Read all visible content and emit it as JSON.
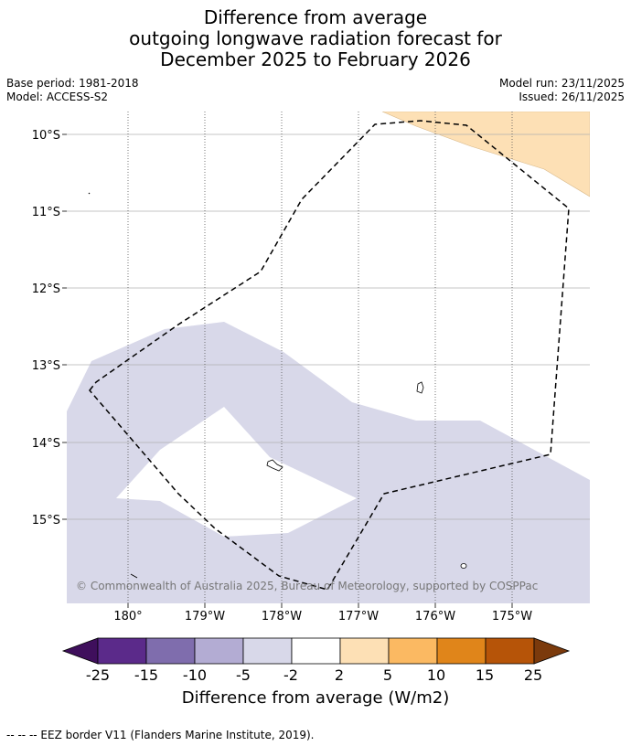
{
  "title": {
    "line1": "Difference from average",
    "line2": "outgoing longwave radiation forecast for",
    "line3": "December 2025 to February 2026"
  },
  "meta": {
    "base_period": "Base period: 1981-2018",
    "model": "Model: ACCESS-S2",
    "model_run": "Model run: 23/11/2025",
    "issued": "Issued: 26/11/2025"
  },
  "map": {
    "copyright": "© Commonwealth of Australia 2025, Bureau of Meteorology, supported by COSPPac",
    "lat_labels": [
      "10°S",
      "11°S",
      "12°S",
      "13°S",
      "14°S",
      "15°S"
    ],
    "lon_labels": [
      "180°",
      "179°W",
      "178°W",
      "177°W",
      "176°W",
      "175°W"
    ],
    "colors": {
      "band_neg2_neg5": "#d8d8e9",
      "band_2_5": "#fde0b5",
      "gridline": "#b0b0b0",
      "eez_border": "#000000"
    },
    "shaded_regions": [
      {
        "range": "-5 to -2",
        "color": "#d8d8e9"
      },
      {
        "range": "2 to 5",
        "color": "#fde0b5"
      }
    ]
  },
  "colorbar": {
    "colors": [
      "#3f0f5c",
      "#5b2a8a",
      "#7f6dad",
      "#b3acd3",
      "#d8d8e9",
      "#ffffff",
      "#fde0b5",
      "#fbb962",
      "#e0851a",
      "#b65408",
      "#7b3a0c"
    ],
    "tick_labels": [
      "-25",
      "-15",
      "-10",
      "-5",
      "-2",
      "2",
      "5",
      "10",
      "15",
      "25"
    ],
    "label": "Difference from average (W/m2)"
  },
  "footer": {
    "legend_text": "-- -- -- EEZ border V11 (Flanders Marine Institute, 2019)."
  }
}
